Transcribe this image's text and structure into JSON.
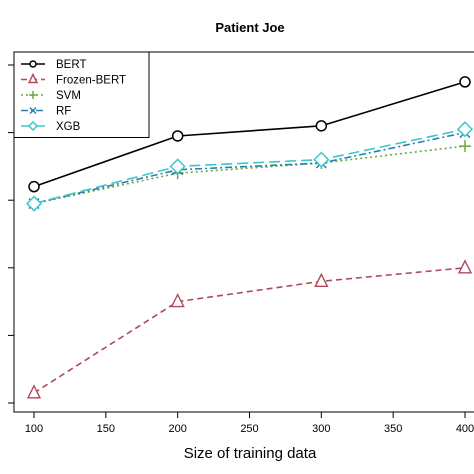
{
  "chart_data": {
    "type": "line",
    "title": "Patient Joe",
    "xlabel": "Size of training data",
    "ylabel": "",
    "x": [
      100,
      200,
      300,
      400
    ],
    "xticks": [
      100,
      150,
      200,
      250,
      300,
      350,
      400
    ],
    "xlim": [
      100,
      400
    ],
    "ylim": [
      0,
      10
    ],
    "y_tick_labels_visible": false,
    "grid": false,
    "legend_position": "top-left",
    "series": [
      {
        "name": "BERT",
        "values": [
          6.4,
          7.9,
          8.2,
          9.5
        ],
        "color": "#000000",
        "dash": "solid",
        "marker": "circle"
      },
      {
        "name": "Frozen-BERT",
        "values": [
          0.3,
          3.0,
          3.6,
          4.0
        ],
        "color": "#b04a5a",
        "dash": "dashed",
        "marker": "triangle"
      },
      {
        "name": "SVM",
        "values": [
          5.9,
          6.8,
          7.1,
          7.6
        ],
        "color": "#6aaa3a",
        "dash": "dotted",
        "marker": "plus"
      },
      {
        "name": "RF",
        "values": [
          5.9,
          6.9,
          7.1,
          8.0
        ],
        "color": "#2a7fb0",
        "dash": "dashdot",
        "marker": "cross"
      },
      {
        "name": "XGB",
        "values": [
          5.9,
          7.0,
          7.2,
          8.1
        ],
        "color": "#3ac8c8",
        "dash": "longdash",
        "marker": "diamond"
      }
    ]
  }
}
